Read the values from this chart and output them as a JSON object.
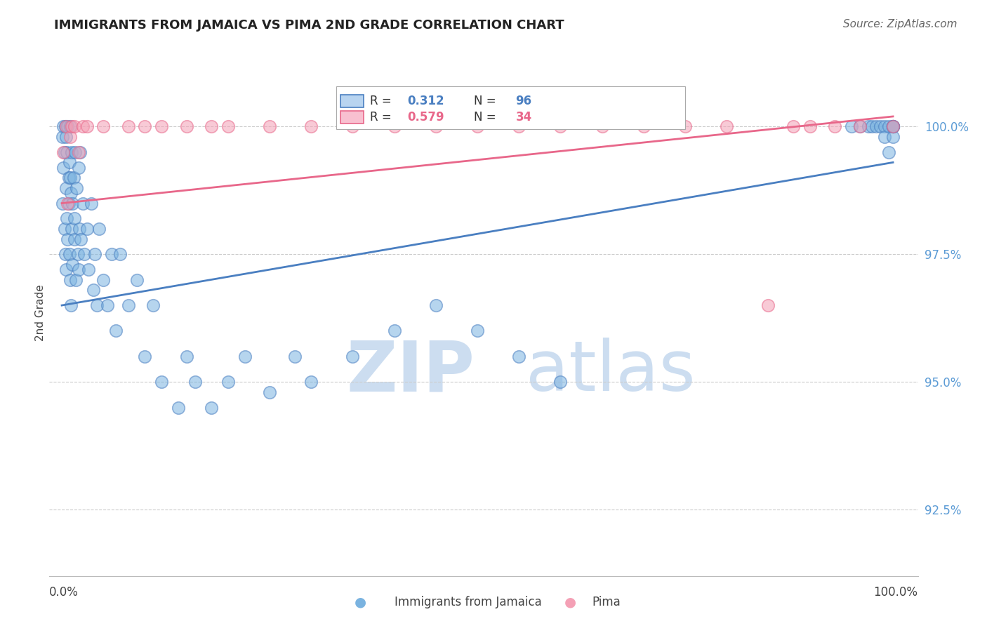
{
  "title": "IMMIGRANTS FROM JAMAICA VS PIMA 2ND GRADE CORRELATION CHART",
  "source": "Source: ZipAtlas.com",
  "ylabel": "2nd Grade",
  "ylim": [
    91.2,
    101.5
  ],
  "xlim": [
    -1.5,
    103.0
  ],
  "yticks": [
    92.5,
    95.0,
    97.5,
    100.0
  ],
  "ytick_labels": [
    "92.5%",
    "95.0%",
    "97.5%",
    "100.0%"
  ],
  "blue_color": "#7ab3e0",
  "pink_color": "#f4a0b5",
  "blue_line_color": "#4a7fc1",
  "pink_line_color": "#e8678a",
  "watermark_zip_color": "#ccddf0",
  "watermark_atlas_color": "#ccddf0",
  "background_color": "#ffffff",
  "grid_color": "#cccccc",
  "ytick_color": "#5b9bd5",
  "title_color": "#222222",
  "source_color": "#666666"
}
